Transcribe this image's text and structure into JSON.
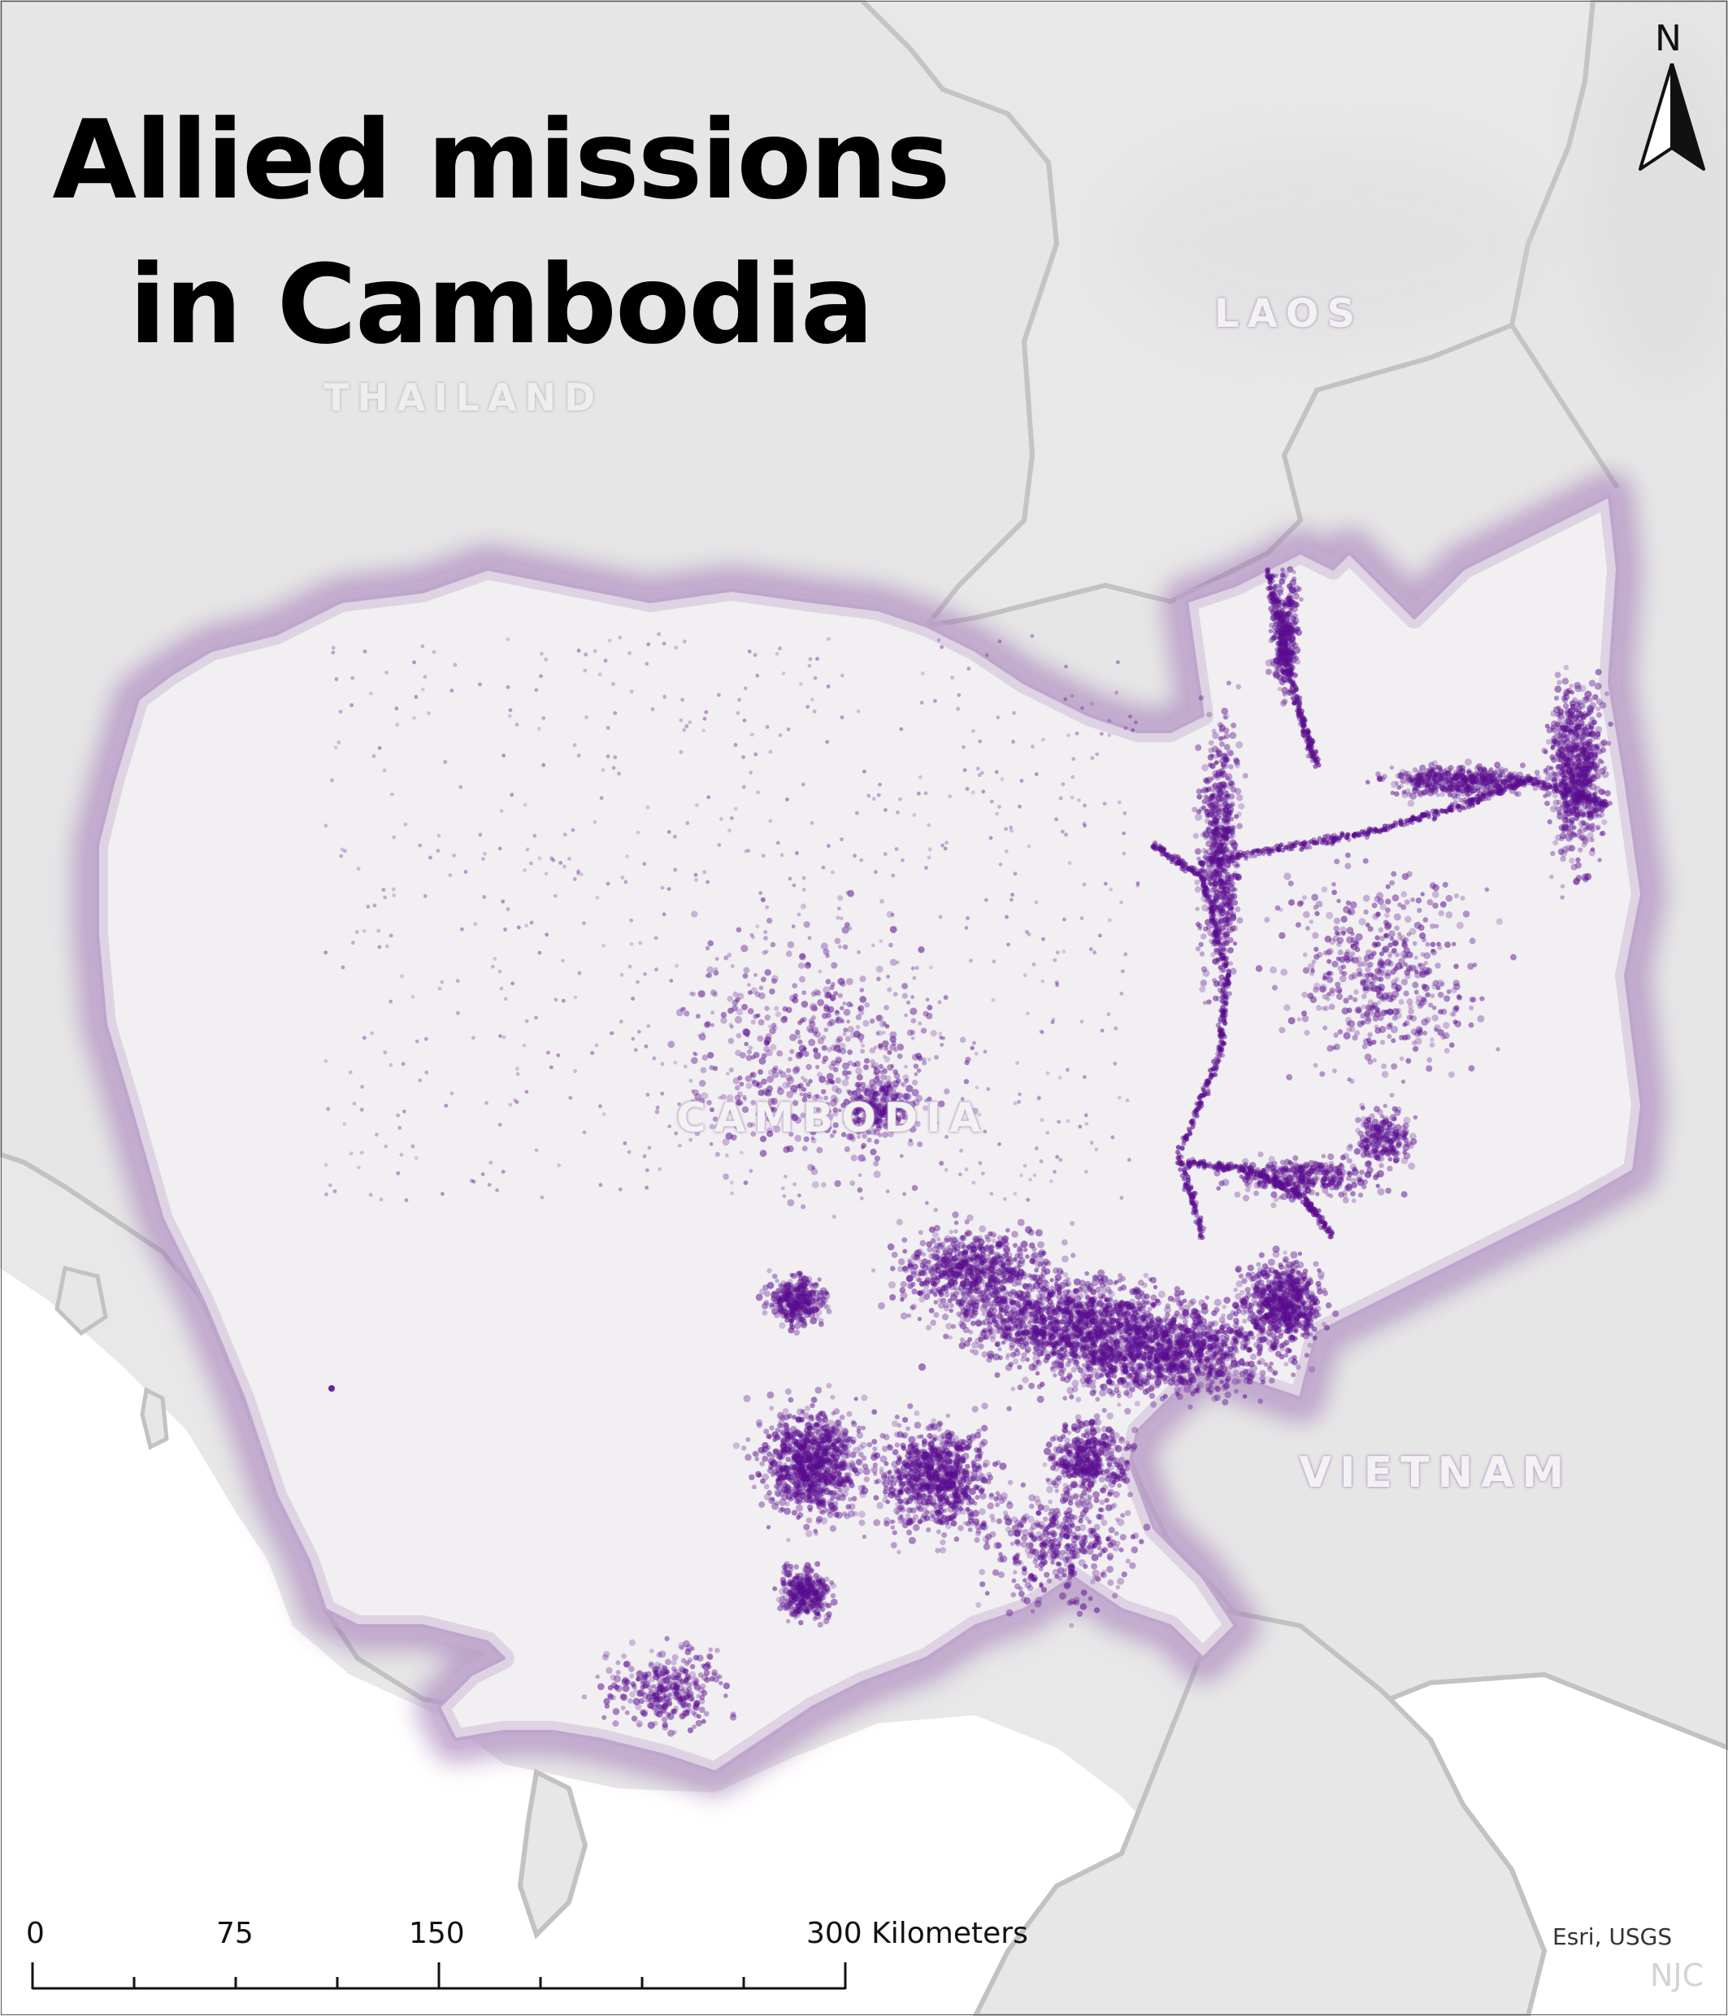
{
  "title": {
    "line1": "Allied missions",
    "line2": "in Cambodia"
  },
  "country_labels": {
    "thailand": "THAILAND",
    "laos": "LAOS",
    "cambodia": "CAMBODIA",
    "vietnam": "VIETNAM"
  },
  "north_arrow": {
    "letter": "N",
    "icon": "north-arrow-icon"
  },
  "scale_bar": {
    "tick_labels": [
      "0",
      "75",
      "150",
      "300 Kilometers"
    ]
  },
  "credit": "Esri, USGS",
  "author_initials": "NJC",
  "colors": {
    "background": "#e8e8e8",
    "land_outline": "#c4c4c4",
    "cambodia_fill": "#f2f0f2",
    "cambodia_border_glow": "#a77fb9",
    "mission_point": "#5a0d8f",
    "water": "#ffffff"
  },
  "data_layer": {
    "name": "mission points",
    "symbol": "small translucent purple dots"
  }
}
